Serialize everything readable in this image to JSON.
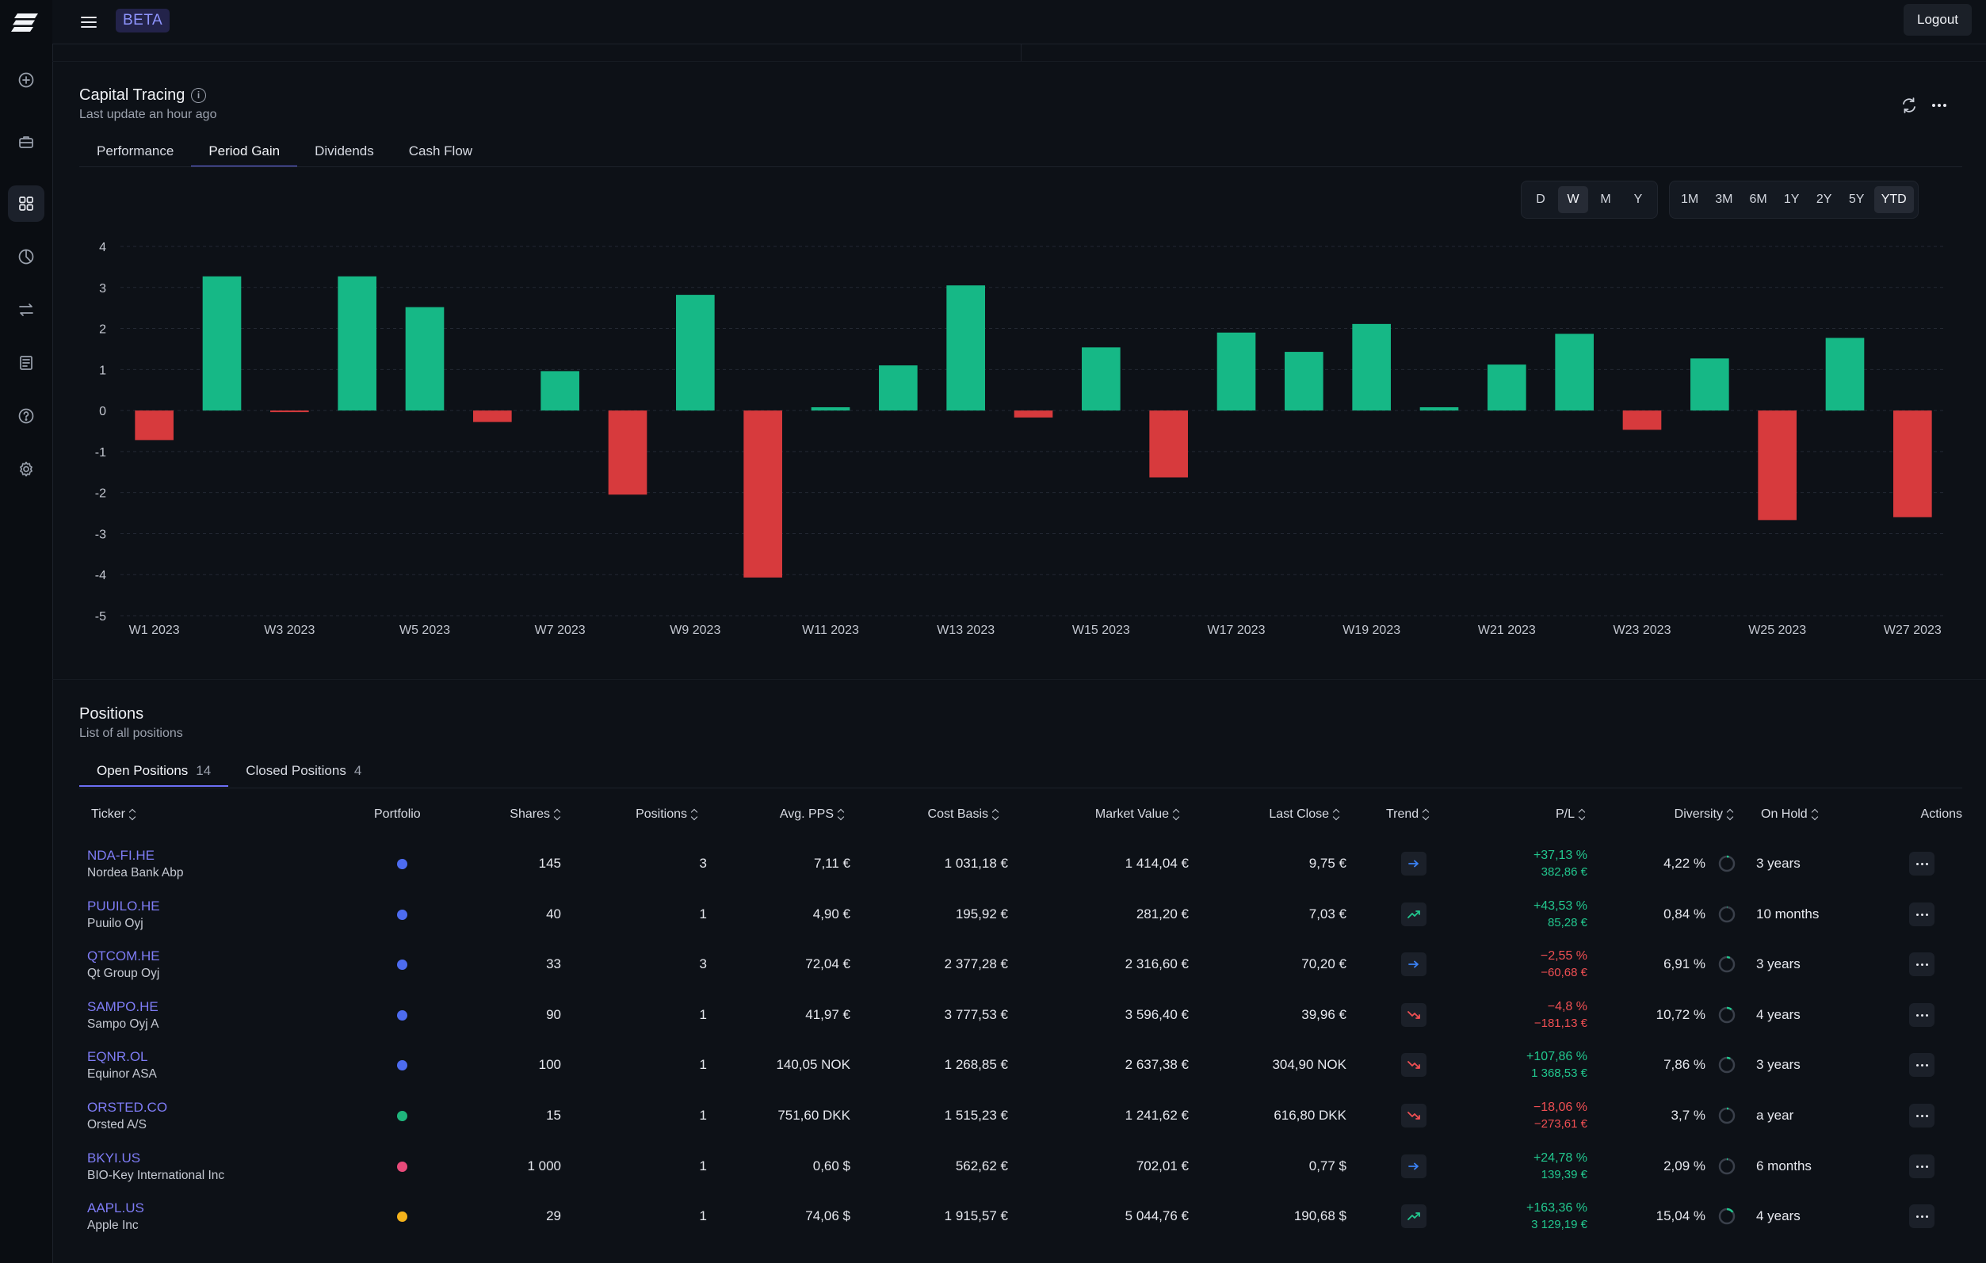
{
  "topbar": {
    "beta": "BETA",
    "logout": "Logout"
  },
  "sidebar": {
    "items": [
      "plus-circle-icon",
      "briefcase-icon",
      "dashboard-grid-icon",
      "pie-chart-icon",
      "transfer-arrows-icon",
      "report-icon",
      "help-icon",
      "settings-gear-icon"
    ],
    "active_index": 2
  },
  "capital": {
    "title": "Capital Tracing",
    "subtitle": "Last update an hour ago",
    "tabs": [
      "Performance",
      "Period Gain",
      "Dividends",
      "Cash Flow"
    ],
    "active_tab": 1,
    "intervals": [
      "D",
      "W",
      "M",
      "Y"
    ],
    "active_interval": 1,
    "ranges": [
      "1M",
      "3M",
      "6M",
      "1Y",
      "2Y",
      "5Y",
      "YTD"
    ],
    "active_range": 6
  },
  "chart_data": {
    "type": "bar",
    "categories": [
      "W1 2023",
      "W2 2023",
      "W3 2023",
      "W4 2023",
      "W5 2023",
      "W6 2023",
      "W7 2023",
      "W8 2023",
      "W9 2023",
      "W10 2023",
      "W11 2023",
      "W12 2023",
      "W13 2023",
      "W14 2023",
      "W15 2023",
      "W16 2023",
      "W17 2023",
      "W18 2023",
      "W19 2023",
      "W20 2023",
      "W21 2023",
      "W22 2023",
      "W23 2023",
      "W24 2023",
      "W25 2023",
      "W26 2023",
      "W27 2023"
    ],
    "tick_labels": [
      "W1 2023",
      "W3 2023",
      "W5 2023",
      "W7 2023",
      "W9 2023",
      "W11 2023",
      "W13 2023",
      "W15 2023",
      "W17 2023",
      "W19 2023",
      "W21 2023",
      "W23 2023",
      "W25 2023",
      "W27 2023"
    ],
    "values": [
      -0.72,
      3.27,
      -0.03,
      3.27,
      2.52,
      -0.28,
      0.96,
      -2.05,
      2.82,
      -4.07,
      0.08,
      1.1,
      3.05,
      -0.17,
      1.54,
      -1.63,
      1.9,
      1.43,
      2.11,
      0.08,
      1.12,
      1.87,
      -0.47,
      1.27,
      -2.67,
      1.77,
      -2.6
    ],
    "yticks": [
      4,
      3,
      2,
      1,
      0,
      -1,
      -2,
      -3,
      -4,
      -5
    ],
    "ylim": [
      -5,
      4
    ],
    "colors": {
      "positive": "#16b886",
      "negative": "#d73a3d"
    },
    "grid": true
  },
  "positions": {
    "title": "Positions",
    "subtitle": "List of all positions",
    "tabs": [
      {
        "label": "Open Positions",
        "count": "14"
      },
      {
        "label": "Closed Positions",
        "count": "4"
      }
    ],
    "columns": [
      "Ticker",
      "Portfolio",
      "Shares",
      "Positions",
      "Avg. PPS",
      "Cost Basis",
      "Market Value",
      "Last Close",
      "Trend",
      "P/L",
      "Diversity",
      "On Hold",
      "Actions"
    ],
    "rows": [
      {
        "ticker": "NDA-FI.HE",
        "name": "Nordea Bank Abp",
        "portfolio_color": "#4d6cf0",
        "shares": "145",
        "positions": "3",
        "avg_pps": "7,11 €",
        "cost_basis": "1 031,18 €",
        "market_value": "1 414,04 €",
        "last_close": "9,75 €",
        "trend": "flat",
        "pl_pct": "+37,13 %",
        "pl_abs": "382,86 €",
        "pl_sign": "pos",
        "diversity": "4,22 %",
        "diversity_value": 4.22,
        "on_hold": "3 years"
      },
      {
        "ticker": "PUUILO.HE",
        "name": "Puuilo Oyj",
        "portfolio_color": "#4d6cf0",
        "shares": "40",
        "positions": "1",
        "avg_pps": "4,90 €",
        "cost_basis": "195,92 €",
        "market_value": "281,20 €",
        "last_close": "7,03 €",
        "trend": "up",
        "pl_pct": "+43,53 %",
        "pl_abs": "85,28 €",
        "pl_sign": "pos",
        "diversity": "0,84 %",
        "diversity_value": 0.84,
        "on_hold": "10 months"
      },
      {
        "ticker": "QTCOM.HE",
        "name": "Qt Group Oyj",
        "portfolio_color": "#4d6cf0",
        "shares": "33",
        "positions": "3",
        "avg_pps": "72,04 €",
        "cost_basis": "2 377,28 €",
        "market_value": "2 316,60 €",
        "last_close": "70,20 €",
        "trend": "flat",
        "pl_pct": "−2,55 %",
        "pl_abs": "−60,68 €",
        "pl_sign": "neg",
        "diversity": "6,91 %",
        "diversity_value": 6.91,
        "on_hold": "3 years"
      },
      {
        "ticker": "SAMPO.HE",
        "name": "Sampo Oyj A",
        "portfolio_color": "#4d6cf0",
        "shares": "90",
        "positions": "1",
        "avg_pps": "41,97 €",
        "cost_basis": "3 777,53 €",
        "market_value": "3 596,40 €",
        "last_close": "39,96 €",
        "trend": "down",
        "pl_pct": "−4,8 %",
        "pl_abs": "−181,13 €",
        "pl_sign": "neg",
        "diversity": "10,72 %",
        "diversity_value": 10.72,
        "on_hold": "4 years"
      },
      {
        "ticker": "EQNR.OL",
        "name": "Equinor ASA",
        "portfolio_color": "#4d6cf0",
        "shares": "100",
        "positions": "1",
        "avg_pps": "140,05 NOK",
        "cost_basis": "1 268,85 €",
        "market_value": "2 637,38 €",
        "last_close": "304,90 NOK",
        "trend": "down",
        "pl_pct": "+107,86 %",
        "pl_abs": "1 368,53 €",
        "pl_sign": "pos",
        "diversity": "7,86 %",
        "diversity_value": 7.86,
        "on_hold": "3 years"
      },
      {
        "ticker": "ORSTED.CO",
        "name": "Orsted A/S",
        "portfolio_color": "#1fb57c",
        "shares": "15",
        "positions": "1",
        "avg_pps": "751,60 DKK",
        "cost_basis": "1 515,23 €",
        "market_value": "1 241,62 €",
        "last_close": "616,80 DKK",
        "trend": "down",
        "pl_pct": "−18,06 %",
        "pl_abs": "−273,61 €",
        "pl_sign": "neg",
        "diversity": "3,7 %",
        "diversity_value": 3.7,
        "on_hold": "a year"
      },
      {
        "ticker": "BKYI.US",
        "name": "BIO-Key International Inc",
        "portfolio_color": "#e84a7a",
        "shares": "1 000",
        "positions": "1",
        "avg_pps": "0,60 $",
        "cost_basis": "562,62 €",
        "market_value": "702,01 €",
        "last_close": "0,77 $",
        "trend": "flat",
        "pl_pct": "+24,78 %",
        "pl_abs": "139,39 €",
        "pl_sign": "pos",
        "diversity": "2,09 %",
        "diversity_value": 2.09,
        "on_hold": "6 months"
      },
      {
        "ticker": "AAPL.US",
        "name": "Apple Inc",
        "portfolio_color": "#f3b21b",
        "shares": "29",
        "positions": "1",
        "avg_pps": "74,06 $",
        "cost_basis": "1 915,57 €",
        "market_value": "5 044,76 €",
        "last_close": "190,68 $",
        "trend": "up",
        "pl_pct": "+163,36 %",
        "pl_abs": "3 129,19 €",
        "pl_sign": "pos",
        "diversity": "15,04 %",
        "diversity_value": 15.04,
        "on_hold": "4 years"
      }
    ]
  }
}
